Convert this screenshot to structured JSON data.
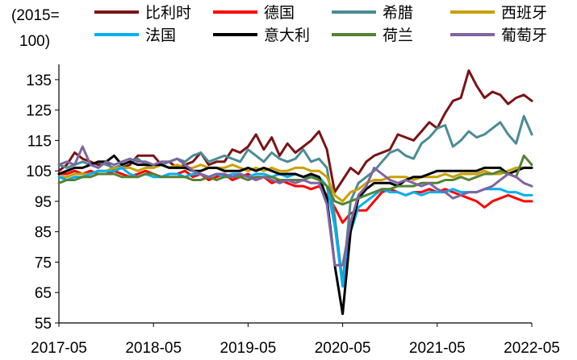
{
  "chart_data": {
    "type": "line",
    "title": "",
    "xlabel": "",
    "ylabel": "",
    "unit_label": [
      "(2015=",
      "100)"
    ],
    "ylim": [
      55,
      140
    ],
    "yticks": [
      55,
      65,
      75,
      85,
      95,
      105,
      115,
      125,
      135
    ],
    "xtick_labels": [
      "2017-05",
      "2018-05",
      "2019-05",
      "2020-05",
      "2021-05",
      "2022-05"
    ],
    "xlim_months": [
      "2017-05",
      "2022-05"
    ],
    "grid": false,
    "legend_position": "top",
    "x": [
      "2017-05",
      "2017-06",
      "2017-07",
      "2017-08",
      "2017-09",
      "2017-10",
      "2017-11",
      "2017-12",
      "2018-01",
      "2018-02",
      "2018-03",
      "2018-04",
      "2018-05",
      "2018-06",
      "2018-07",
      "2018-08",
      "2018-09",
      "2018-10",
      "2018-11",
      "2018-12",
      "2019-01",
      "2019-02",
      "2019-03",
      "2019-04",
      "2019-05",
      "2019-06",
      "2019-07",
      "2019-08",
      "2019-09",
      "2019-10",
      "2019-11",
      "2019-12",
      "2020-01",
      "2020-02",
      "2020-03",
      "2020-04",
      "2020-05",
      "2020-06",
      "2020-07",
      "2020-08",
      "2020-09",
      "2020-10",
      "2020-11",
      "2020-12",
      "2021-01",
      "2021-02",
      "2021-03",
      "2021-04",
      "2021-05",
      "2021-06",
      "2021-07",
      "2021-08",
      "2021-09",
      "2021-10",
      "2021-11",
      "2021-12",
      "2022-01",
      "2022-02",
      "2022-03",
      "2022-04",
      "2022-05"
    ],
    "series": [
      {
        "name": "比利时",
        "color": "#7a1416",
        "values": [
          105,
          107,
          111,
          109,
          108,
          107,
          108,
          105,
          106,
          107,
          110,
          110,
          110,
          107,
          108,
          106,
          107,
          108,
          111,
          107,
          108,
          108,
          112,
          111,
          113,
          117,
          112,
          116,
          110,
          114,
          111,
          113,
          115,
          118,
          112,
          98,
          102,
          106,
          104,
          108,
          110,
          111,
          112,
          117,
          116,
          115,
          118,
          121,
          119,
          124,
          128,
          129,
          138,
          133,
          129,
          131,
          130,
          127,
          129,
          130,
          128
        ]
      },
      {
        "name": "德国",
        "color": "#ff0000",
        "values": [
          104,
          104,
          105,
          104,
          105,
          104,
          104,
          105,
          104,
          103,
          104,
          105,
          104,
          103,
          104,
          104,
          105,
          103,
          104,
          102,
          103,
          104,
          102,
          103,
          104,
          102,
          103,
          101,
          102,
          101,
          100,
          100,
          99,
          100,
          97,
          93,
          88,
          91,
          92,
          92,
          95,
          98,
          99,
          98,
          97,
          98,
          98,
          99,
          98,
          99,
          98,
          97,
          96,
          95,
          93,
          95,
          96,
          97,
          96,
          95,
          95
        ]
      },
      {
        "name": "希腊",
        "color": "#4b8c95",
        "values": [
          107,
          106,
          107,
          108,
          107,
          108,
          107,
          106,
          107,
          108,
          109,
          107,
          106,
          107,
          108,
          109,
          108,
          110,
          111,
          108,
          109,
          110,
          109,
          108,
          112,
          110,
          108,
          111,
          109,
          108,
          109,
          112,
          108,
          109,
          106,
          90,
          68,
          95,
          101,
          103,
          105,
          108,
          111,
          112,
          110,
          109,
          114,
          116,
          119,
          120,
          113,
          115,
          118,
          116,
          117,
          119,
          121,
          117,
          114,
          123,
          117
        ]
      },
      {
        "name": "西班牙",
        "color": "#c9a000",
        "values": [
          103,
          103,
          104,
          104,
          104,
          105,
          105,
          106,
          106,
          106,
          105,
          106,
          106,
          107,
          106,
          107,
          106,
          106,
          107,
          106,
          106,
          106,
          107,
          106,
          105,
          106,
          105,
          106,
          105,
          105,
          106,
          106,
          105,
          105,
          103,
          97,
          95,
          98,
          99,
          101,
          102,
          102,
          103,
          103,
          103,
          102,
          103,
          103,
          103,
          104,
          103,
          104,
          104,
          104,
          105,
          104,
          104,
          105,
          106,
          106,
          106
        ]
      },
      {
        "name": "法国",
        "color": "#00b0f0",
        "values": [
          103,
          102,
          103,
          103,
          104,
          105,
          105,
          105,
          106,
          104,
          103,
          104,
          103,
          103,
          104,
          104,
          103,
          104,
          104,
          103,
          104,
          103,
          104,
          104,
          103,
          104,
          104,
          103,
          104,
          103,
          104,
          103,
          103,
          103,
          100,
          87,
          67,
          85,
          93,
          95,
          97,
          99,
          98,
          98,
          97,
          98,
          97,
          98,
          98,
          98,
          99,
          98,
          98,
          98,
          99,
          99,
          99,
          98,
          98,
          97,
          97
        ]
      },
      {
        "name": "意大利",
        "color": "#000000",
        "values": [
          104,
          105,
          106,
          106,
          107,
          108,
          108,
          110,
          107,
          108,
          107,
          107,
          107,
          107,
          106,
          106,
          106,
          105,
          105,
          106,
          106,
          105,
          105,
          105,
          106,
          105,
          106,
          105,
          104,
          104,
          104,
          103,
          104,
          103,
          96,
          74,
          58,
          85,
          96,
          99,
          101,
          101,
          101,
          100,
          102,
          103,
          103,
          104,
          105,
          105,
          105,
          105,
          105,
          105,
          106,
          106,
          106,
          104,
          105,
          106,
          106
        ]
      },
      {
        "name": "荷兰",
        "color": "#548235",
        "values": [
          101,
          102,
          102,
          103,
          103,
          104,
          104,
          104,
          103,
          103,
          103,
          104,
          104,
          103,
          103,
          103,
          103,
          102,
          102,
          103,
          102,
          103,
          103,
          103,
          102,
          103,
          103,
          103,
          102,
          102,
          102,
          102,
          103,
          102,
          100,
          95,
          94,
          95,
          96,
          97,
          98,
          99,
          99,
          100,
          100,
          100,
          101,
          101,
          101,
          102,
          102,
          103,
          102,
          103,
          104,
          104,
          105,
          104,
          103,
          110,
          107
        ]
      },
      {
        "name": "葡萄牙",
        "color": "#8064a2",
        "values": [
          107,
          108,
          107,
          113,
          107,
          106,
          108,
          107,
          108,
          109,
          108,
          108,
          107,
          108,
          108,
          109,
          107,
          105,
          104,
          103,
          104,
          104,
          103,
          104,
          103,
          102,
          103,
          102,
          101,
          102,
          101,
          102,
          101,
          101,
          94,
          74,
          74,
          88,
          97,
          100,
          106,
          104,
          102,
          101,
          102,
          101,
          100,
          101,
          99,
          98,
          96,
          97,
          98,
          98,
          99,
          100,
          102,
          104,
          103,
          101,
          100
        ]
      }
    ]
  }
}
